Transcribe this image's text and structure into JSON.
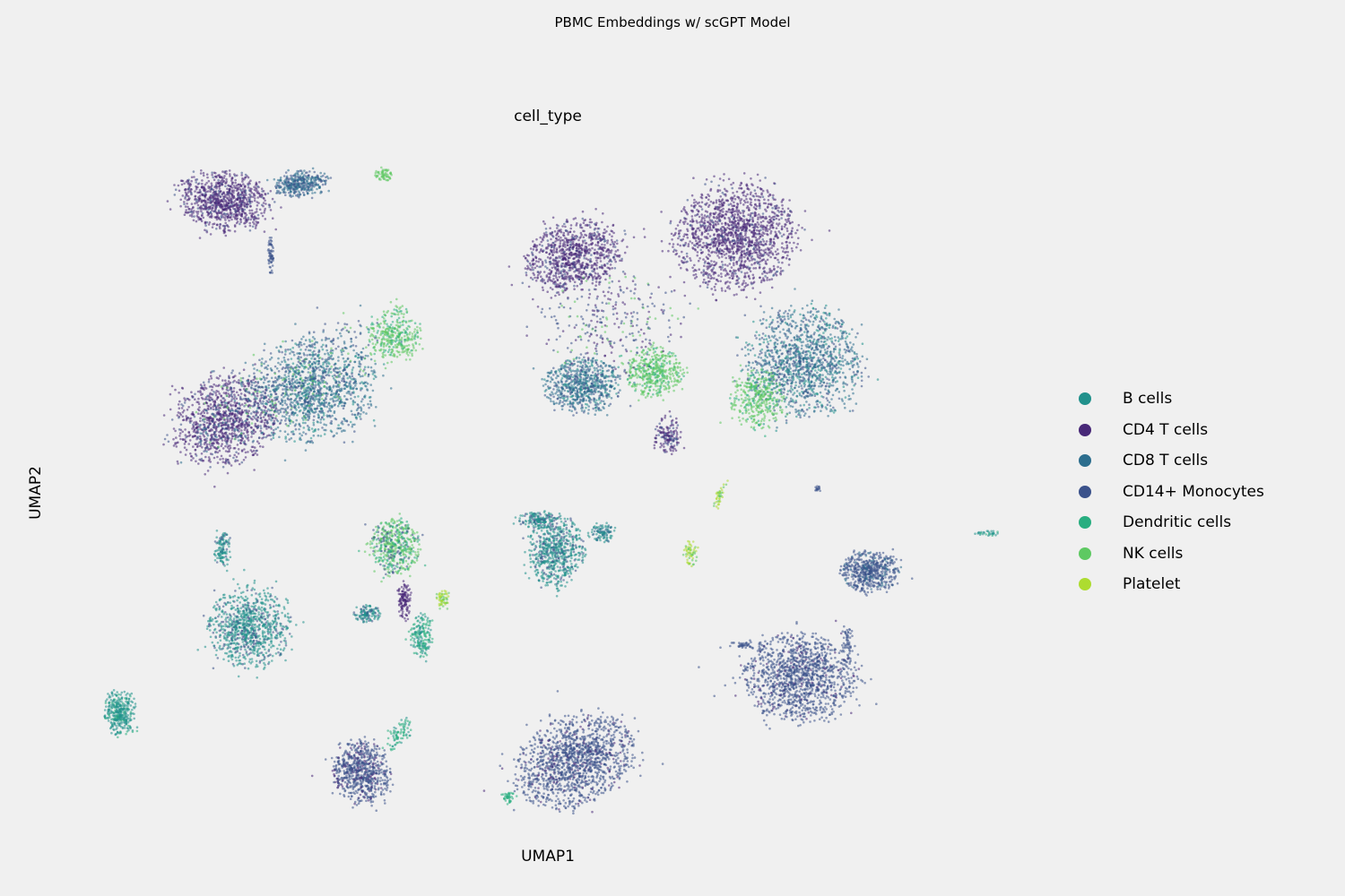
{
  "chart_data": {
    "type": "scatter",
    "suptitle": "PBMC Embeddings w/ scGPT Model",
    "title": "cell_type",
    "xlabel": "UMAP1",
    "ylabel": "UMAP2",
    "grid": false,
    "legend_position": "right",
    "series": [
      {
        "name": "B cells",
        "color": "#21918c"
      },
      {
        "name": "CD4 T cells",
        "color": "#482878"
      },
      {
        "name": "CD8 T cells",
        "color": "#2c6e8e"
      },
      {
        "name": "CD14+ Monocytes",
        "color": "#3b528b"
      },
      {
        "name": "Dendritic cells",
        "color": "#28ae80"
      },
      {
        "name": "NK cells",
        "color": "#5ec962"
      },
      {
        "name": "Platelet",
        "color": "#addc30"
      }
    ]
  }
}
